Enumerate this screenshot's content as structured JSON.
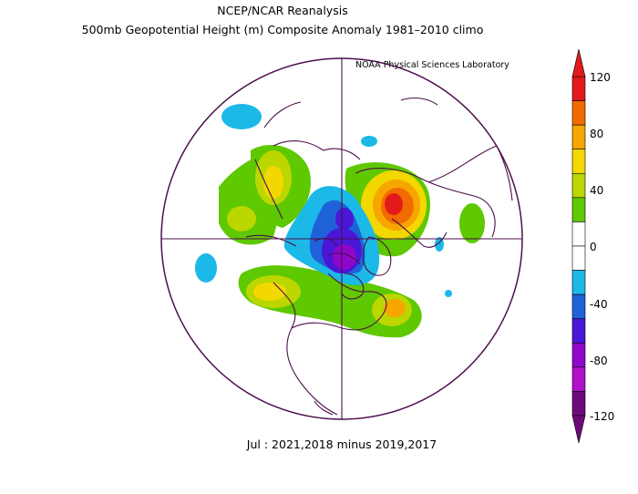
{
  "header": {
    "title": "NCEP/NCAR Reanalysis",
    "subtitle": "500mb Geopotential Height (m) Composite Anomaly 1981–2010 climo",
    "credit": "NOAA Physical Sciences Laboratory"
  },
  "footer": {
    "caption": "Jul : 2021,2018 minus 2019,2017"
  },
  "colorbar": {
    "labels": [
      "120",
      "80",
      "40",
      "0",
      "-40",
      "-80",
      "-120"
    ],
    "colors": [
      "#e31a1c",
      "#f26b00",
      "#f7a600",
      "#f2d800",
      "#bcd600",
      "#5ec800",
      "#ffffff",
      "#ffffff",
      "#1cb8e8",
      "#1f62d8",
      "#4a16d8",
      "#8f07c8",
      "#b010c8",
      "#6d0a7a"
    ]
  },
  "map_colors": {
    "outline": "#4b0f4b",
    "positive_strong": "#e31a1c",
    "positive_mid": "#f7a600",
    "positive_low": "#5ec800",
    "negative_low": "#1cb8e8",
    "negative_mid": "#4a16d8",
    "negative_strong": "#6d0a7a"
  }
}
